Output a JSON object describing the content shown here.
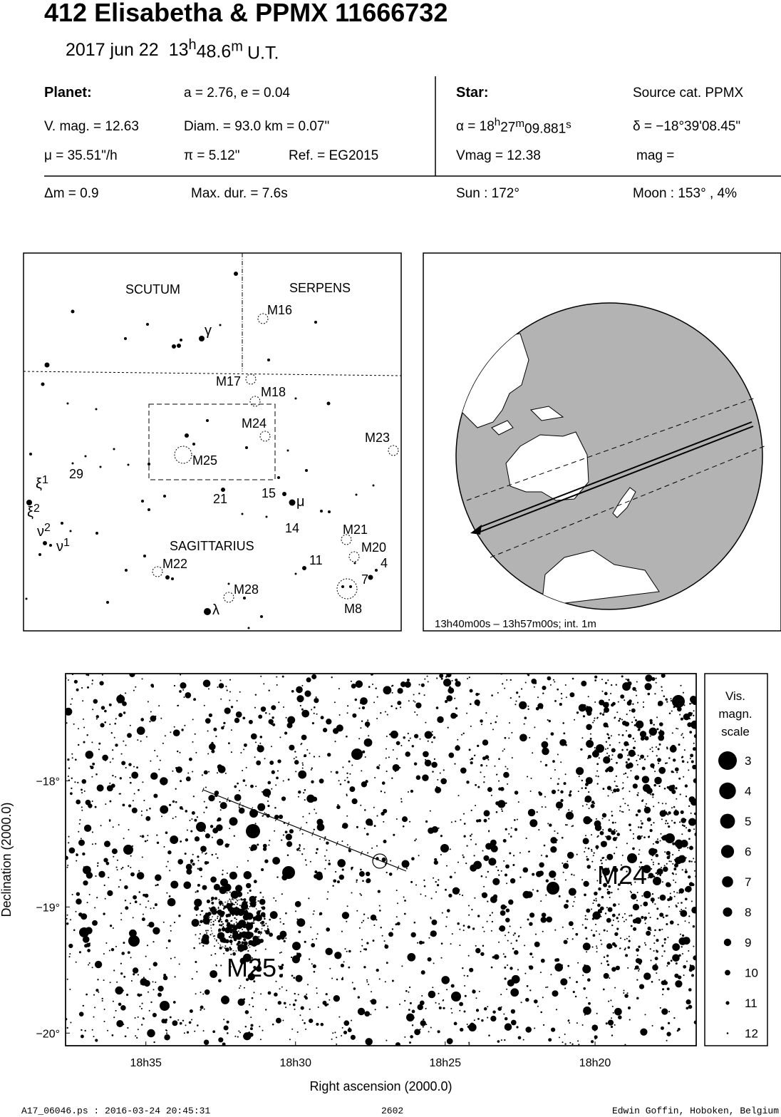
{
  "header": {
    "title": "412 Elisabetha  &  PPMX 11666732",
    "date": "2017 jun 22",
    "time": {
      "hours": "13",
      "hours_unit": "h",
      "minutes": "48.6",
      "minutes_unit": "m",
      "suffix": "U.T."
    }
  },
  "planet": {
    "heading": "Planet:",
    "orbit": "a = 2.76, e = 0.04",
    "vmag": "V. mag. = 12.63",
    "diameter": "Diam. = 93.0 km = 0.07\"",
    "motion": "μ =  35.51\"/h",
    "parallax": "π =  5.12\"",
    "reference": "Ref. = EG2015"
  },
  "star": {
    "heading": "Star:",
    "source": "Source cat.  PPMX",
    "ra": {
      "prefix": "α = 18",
      "h": "h",
      "min": "27",
      "m": "m",
      "sec": "09.881",
      "s": "s"
    },
    "dec": "δ = −18°39'08.45\"",
    "vmag": "Vmag = 12.38",
    "mag": "mag ="
  },
  "event": {
    "delta_mag": "Δm = 0.9",
    "max_duration": "Max. dur. = 7.6s",
    "sun": "Sun : 172°",
    "moon": "Moon : 153° ,  4%"
  },
  "overview_map": {
    "constellations": [
      "SCUTUM",
      "SERPENS",
      "SAGITTARIUS"
    ],
    "objects": [
      "M16",
      "M17",
      "M18",
      "M24",
      "M25",
      "M23",
      "M21",
      "M20",
      "M22",
      "M28",
      "M8"
    ],
    "star_numbers": [
      "29",
      "21",
      "15",
      "14",
      "11",
      "4",
      "7"
    ],
    "greek": [
      {
        "symbol": "γ"
      },
      {
        "symbol": "μ"
      },
      {
        "symbol": "λ"
      },
      {
        "symbol": "ξ",
        "index": "1"
      },
      {
        "symbol": "ξ",
        "index": "2"
      },
      {
        "symbol": "ν",
        "index": "2"
      },
      {
        "symbol": "ν",
        "index": "1"
      }
    ]
  },
  "globe": {
    "caption": "13h40m00s – 13h57m00s; int.  1m"
  },
  "chart_data": {
    "type": "scatter",
    "xlabel": "Right ascension (2000.0)",
    "ylabel": "Declination (2000.0)",
    "xlim": [
      18.628,
      18.277
    ],
    "xticks": [
      {
        "value": 18.5833,
        "label": "18h35"
      },
      {
        "value": 18.5,
        "label": "18h30"
      },
      {
        "value": 18.4167,
        "label": "18h25"
      },
      {
        "value": 18.3333,
        "label": "18h20"
      }
    ],
    "ylim": [
      -20.1,
      -17.15
    ],
    "yticks": [
      {
        "value": -18,
        "label": "−18°"
      },
      {
        "value": -19,
        "label": "−19°"
      },
      {
        "value": -20,
        "label": "−20°"
      }
    ],
    "annotations": [
      "M24",
      "M25"
    ],
    "legend": {
      "title": [
        "Vis.",
        "magn.",
        "scale"
      ],
      "magnitudes": [
        3,
        4,
        5,
        6,
        7,
        8,
        9,
        10,
        11,
        12
      ]
    }
  },
  "footer": {
    "file": "A17_06046.ps : 2016-03-24 20:45:31",
    "number": "2602",
    "author": "Edwin Goffin, Hoboken, Belgium"
  }
}
